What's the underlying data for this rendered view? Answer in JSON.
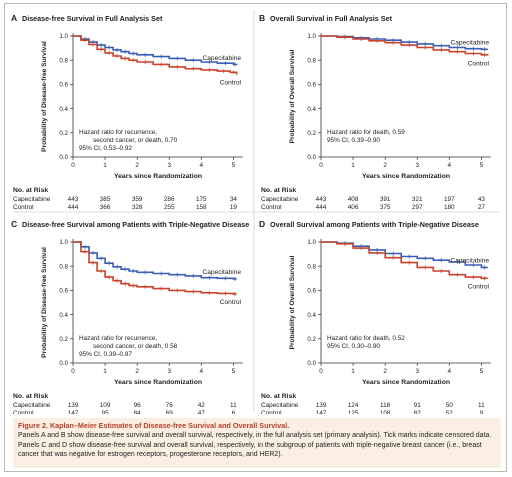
{
  "chart_data": [
    {
      "type": "line",
      "panel_label": "A",
      "title": "Disease-free Survival in Full Analysis Set",
      "xlabel": "Years since Randomization",
      "ylabel": "Probability of Disease-free Survival",
      "xlim": [
        0,
        5.3
      ],
      "ylim": [
        0,
        1.0
      ],
      "xticks": [
        0,
        1,
        2,
        3,
        4,
        5
      ],
      "yticks": [
        0.0,
        0.2,
        0.4,
        0.6,
        0.8,
        1.0
      ],
      "hazard_text": [
        "Hazard ratio for recurrence,",
        "second cancer, or death, 0.70",
        "95% CI, 0.53–0.92"
      ],
      "series": [
        {
          "name": "Capecitabine",
          "color": "#3b5eb5",
          "x": [
            0,
            0.25,
            0.5,
            0.75,
            1.0,
            1.25,
            1.5,
            1.75,
            2.0,
            2.5,
            3.0,
            3.5,
            4.0,
            4.5,
            5.0,
            5.1
          ],
          "y": [
            1.0,
            0.975,
            0.95,
            0.925,
            0.905,
            0.885,
            0.87,
            0.855,
            0.845,
            0.83,
            0.815,
            0.8,
            0.785,
            0.775,
            0.765,
            0.76
          ]
        },
        {
          "name": "Control",
          "color": "#c9432c",
          "x": [
            0,
            0.25,
            0.5,
            0.75,
            1.0,
            1.25,
            1.5,
            1.75,
            2.0,
            2.5,
            3.0,
            3.5,
            4.0,
            4.5,
            4.9,
            5.1
          ],
          "y": [
            1.0,
            0.965,
            0.93,
            0.89,
            0.86,
            0.835,
            0.815,
            0.8,
            0.785,
            0.765,
            0.745,
            0.73,
            0.72,
            0.71,
            0.7,
            0.68
          ]
        }
      ],
      "risk_table": {
        "header": "No. at Risk",
        "rows": [
          {
            "name": "Capecitabine",
            "values": [
              "443",
              "385",
              "359",
              "286",
              "175",
              "34"
            ]
          },
          {
            "name": "Control",
            "values": [
              "444",
              "366",
              "328",
              "255",
              "158",
              "19"
            ]
          }
        ]
      }
    },
    {
      "type": "line",
      "panel_label": "B",
      "title": "Overall Survival in Full Analysis Set",
      "xlabel": "Years since Randomization",
      "ylabel": "Probability of Overall Survival",
      "xlim": [
        0,
        5.3
      ],
      "ylim": [
        0,
        1.0
      ],
      "xticks": [
        0,
        1,
        2,
        3,
        4,
        5
      ],
      "yticks": [
        0.0,
        0.2,
        0.4,
        0.6,
        0.8,
        1.0
      ],
      "hazard_text": [
        "Hazard ratio for death, 0.59",
        "95% CI, 0.39–0.90"
      ],
      "series": [
        {
          "name": "Capecitabine",
          "color": "#3b5eb5",
          "x": [
            0,
            0.5,
            1.0,
            1.5,
            2.0,
            2.5,
            3.0,
            3.5,
            4.0,
            4.5,
            5.0,
            5.2
          ],
          "y": [
            1.0,
            0.995,
            0.985,
            0.975,
            0.965,
            0.95,
            0.935,
            0.92,
            0.905,
            0.895,
            0.89,
            0.89
          ]
        },
        {
          "name": "Control",
          "color": "#c9432c",
          "x": [
            0,
            0.5,
            1.0,
            1.5,
            2.0,
            2.5,
            3.0,
            3.5,
            4.0,
            4.5,
            5.0,
            5.2
          ],
          "y": [
            1.0,
            0.99,
            0.975,
            0.96,
            0.945,
            0.925,
            0.905,
            0.885,
            0.87,
            0.855,
            0.845,
            0.84
          ]
        }
      ],
      "risk_table": {
        "header": "No. at Risk",
        "rows": [
          {
            "name": "Capecitabine",
            "values": [
              "443",
              "408",
              "391",
              "321",
              "197",
              "43"
            ]
          },
          {
            "name": "Control",
            "values": [
              "444",
              "406",
              "375",
              "297",
              "180",
              "27"
            ]
          }
        ]
      }
    },
    {
      "type": "line",
      "panel_label": "C",
      "title": "Disease-free Survival among Patients with Triple-Negative Disease",
      "xlabel": "Years since Randomization",
      "ylabel": "Probability of Disease-free Survival",
      "xlim": [
        0,
        5.3
      ],
      "ylim": [
        0,
        1.0
      ],
      "xticks": [
        0,
        1,
        2,
        3,
        4,
        5
      ],
      "yticks": [
        0.0,
        0.2,
        0.4,
        0.6,
        0.8,
        1.0
      ],
      "hazard_text": [
        "Hazard ratio for recurrence,",
        "second cancer, or death, 0.58",
        "95% CI, 0.39–0.87"
      ],
      "series": [
        {
          "name": "Capecitabine",
          "color": "#3b5eb5",
          "x": [
            0,
            0.25,
            0.5,
            0.75,
            1.0,
            1.25,
            1.5,
            1.75,
            2.0,
            2.5,
            3.0,
            3.5,
            4.0,
            4.5,
            5.0,
            5.1
          ],
          "y": [
            1.0,
            0.96,
            0.91,
            0.865,
            0.825,
            0.795,
            0.775,
            0.76,
            0.75,
            0.74,
            0.73,
            0.72,
            0.705,
            0.7,
            0.695,
            0.695
          ]
        },
        {
          "name": "Control",
          "color": "#c9432c",
          "x": [
            0,
            0.25,
            0.5,
            0.75,
            1.0,
            1.25,
            1.5,
            1.75,
            2.0,
            2.5,
            3.0,
            3.5,
            4.0,
            4.5,
            5.0,
            5.1
          ],
          "y": [
            1.0,
            0.92,
            0.83,
            0.76,
            0.71,
            0.68,
            0.655,
            0.64,
            0.63,
            0.615,
            0.6,
            0.59,
            0.58,
            0.575,
            0.57,
            0.57
          ]
        }
      ],
      "risk_table": {
        "header": "No. at Risk",
        "rows": [
          {
            "name": "Capecitabine",
            "values": [
              "139",
              "109",
              "96",
              "76",
              "42",
              "11"
            ]
          },
          {
            "name": "Control",
            "values": [
              "147",
              "95",
              "84",
              "69",
              "47",
              "6"
            ]
          }
        ]
      }
    },
    {
      "type": "line",
      "panel_label": "D",
      "title": "Overall Survival among Patients with Triple-Negative Disease",
      "xlabel": "Years since Randomization",
      "ylabel": "Probability of Overall Survival",
      "xlim": [
        0,
        5.3
      ],
      "ylim": [
        0,
        1.0
      ],
      "xticks": [
        0,
        1,
        2,
        3,
        4,
        5
      ],
      "yticks": [
        0.0,
        0.2,
        0.4,
        0.6,
        0.8,
        1.0
      ],
      "hazard_text": [
        "Hazard ratio for death, 0.52",
        "95% CI, 0.30–0.90"
      ],
      "series": [
        {
          "name": "Capecitabine",
          "color": "#3b5eb5",
          "x": [
            0,
            0.5,
            1.0,
            1.5,
            2.0,
            2.5,
            3.0,
            3.5,
            4.0,
            4.5,
            5.0,
            5.2
          ],
          "y": [
            1.0,
            0.99,
            0.965,
            0.935,
            0.905,
            0.88,
            0.865,
            0.85,
            0.835,
            0.81,
            0.79,
            0.79
          ]
        },
        {
          "name": "Control",
          "color": "#c9432c",
          "x": [
            0,
            0.5,
            1.0,
            1.5,
            2.0,
            2.5,
            3.0,
            3.5,
            4.0,
            4.5,
            5.0,
            5.2
          ],
          "y": [
            1.0,
            0.985,
            0.95,
            0.91,
            0.87,
            0.83,
            0.79,
            0.76,
            0.73,
            0.71,
            0.7,
            0.7
          ]
        }
      ],
      "risk_table": {
        "header": "No. at Risk",
        "rows": [
          {
            "name": "Capecitabine",
            "values": [
              "139",
              "124",
              "116",
              "91",
              "50",
              "11"
            ]
          },
          {
            "name": "Control",
            "values": [
              "147",
              "125",
              "108",
              "82",
              "52",
              "9"
            ]
          }
        ]
      }
    }
  ],
  "caption": {
    "title": "Figure 2. Kaplan–Meier Estimates of Disease-free Survival and Overall Survival.",
    "body": "Panels A and B show disease-free survival and overall survival, respectively, in the full analysis set (primary analysis). Tick marks indicate censored data. Panels C and D show disease-free survival and overall survival, respectively, in the subgroup of patients with triple-negative breast cancer (i.e., breast cancer that was negative for estrogen receptors, progesterone receptors, and HER2)."
  },
  "colors": {
    "capecitabine": "#3b5eb5",
    "control": "#c9432c",
    "caption_bg": "#fbeee3",
    "caption_title": "#b8402a",
    "text": "#222222"
  }
}
